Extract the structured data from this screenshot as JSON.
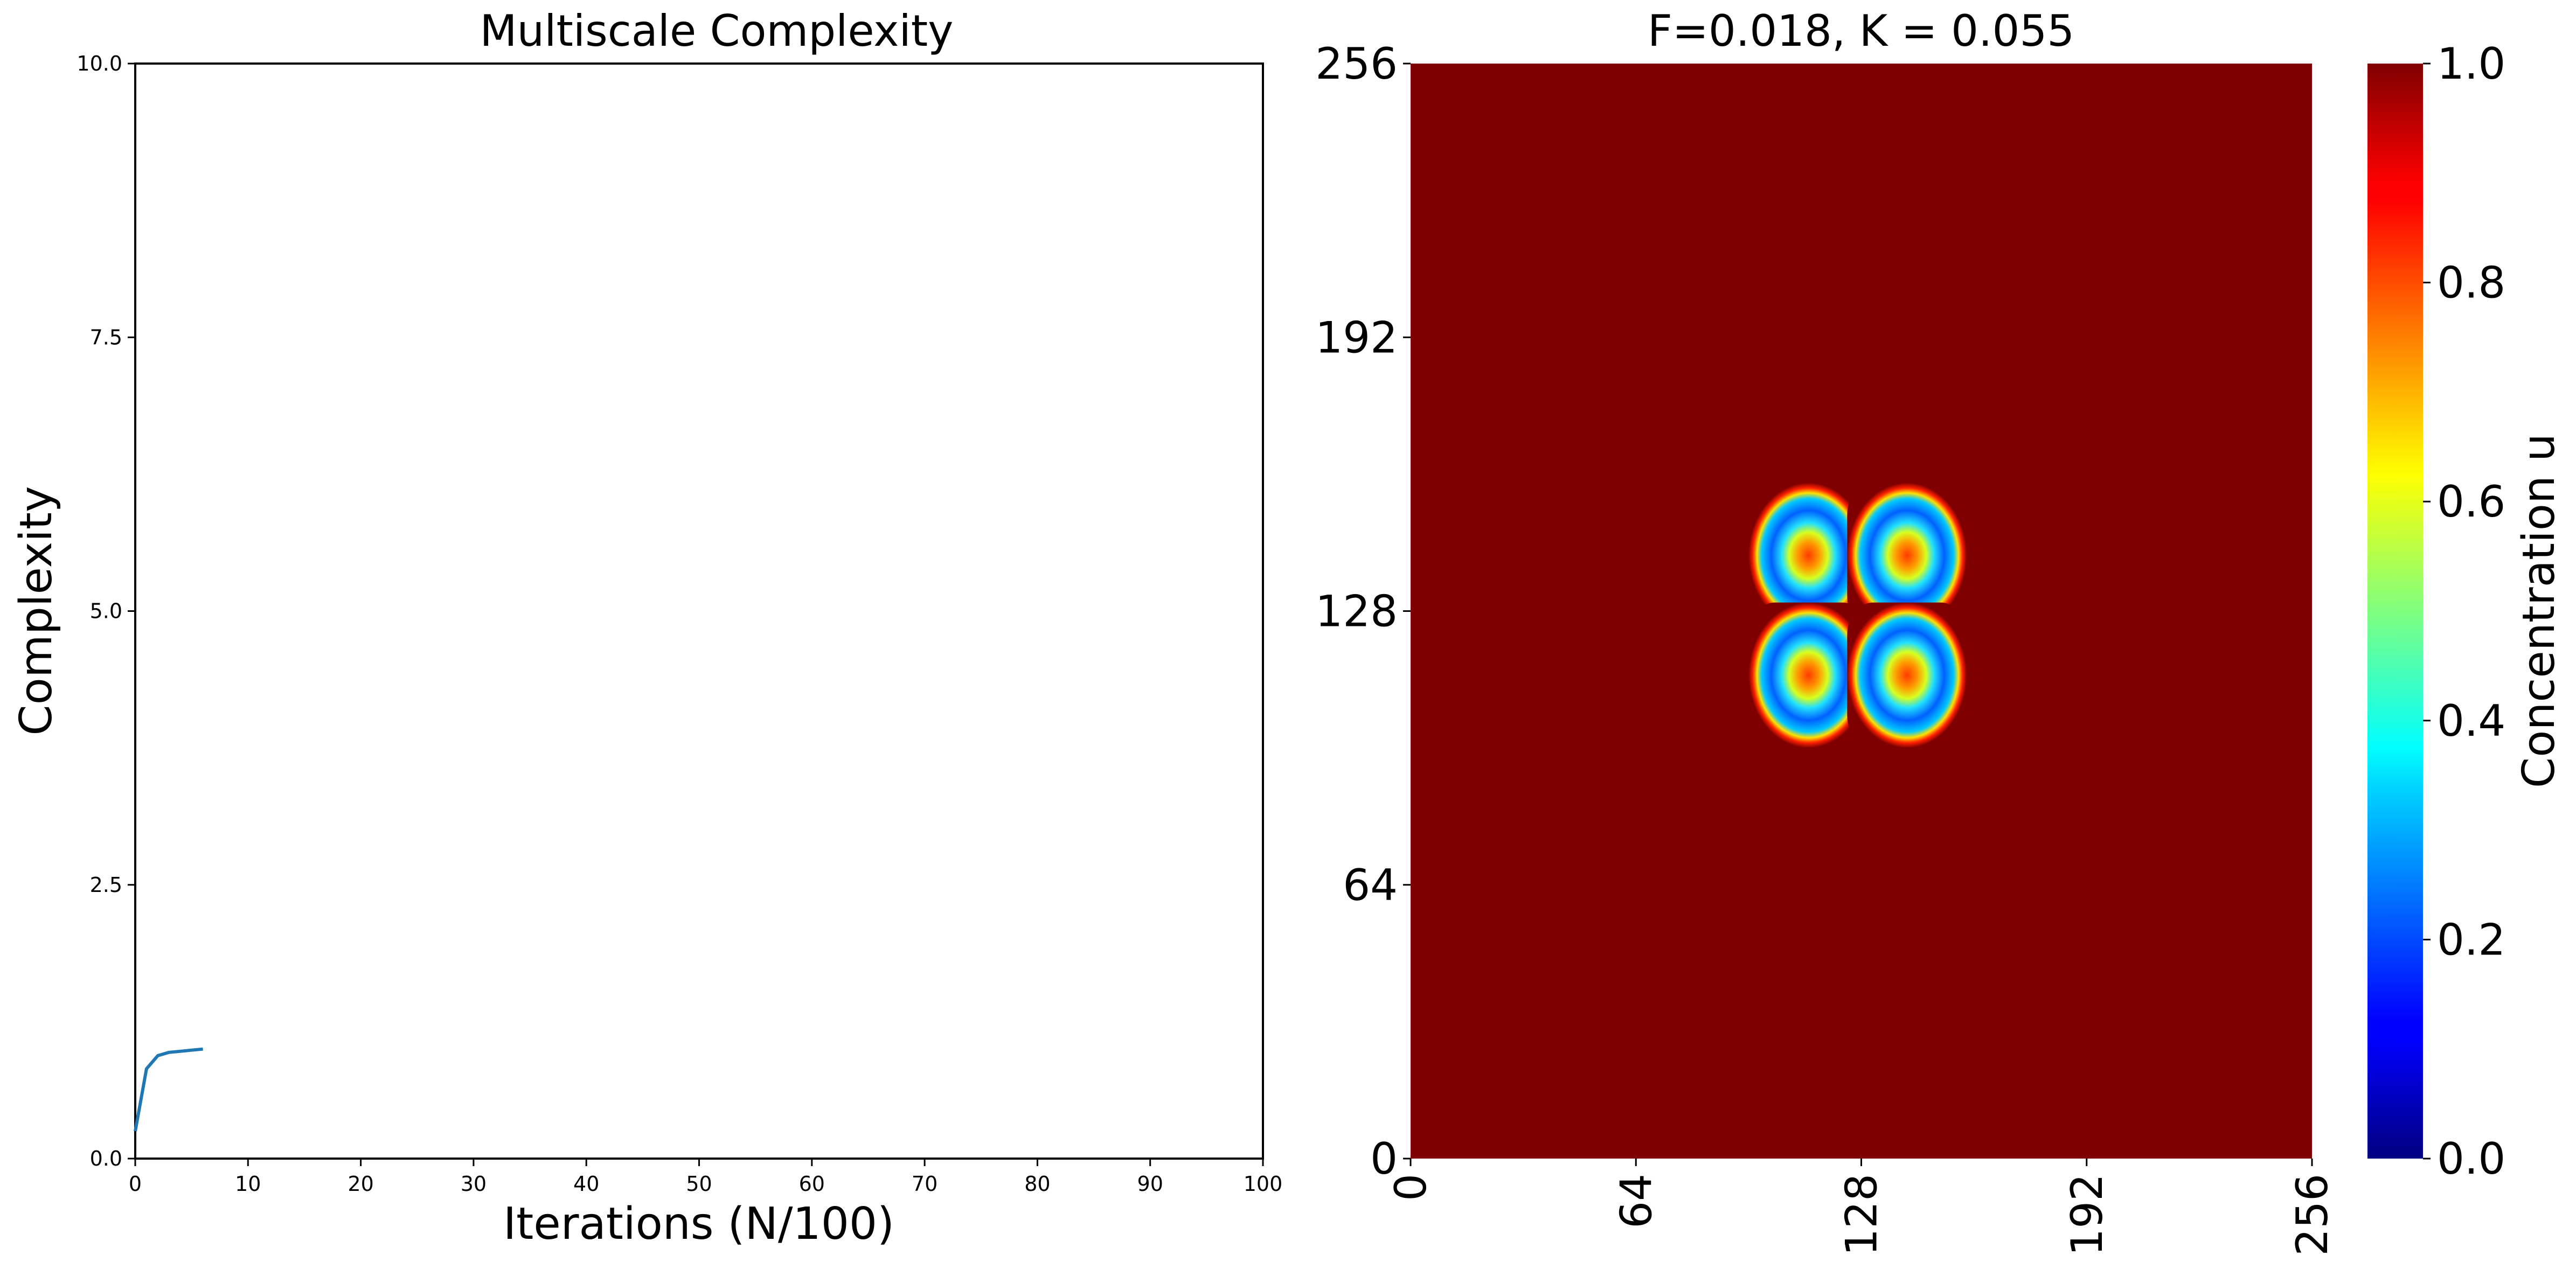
{
  "chart_data": [
    {
      "type": "line",
      "title": "Multiscale Complexity",
      "xlabel": "Iterations (N/100)",
      "ylabel": "Complexity",
      "xlim": [
        0,
        100
      ],
      "ylim": [
        0,
        10
      ],
      "xticks": [
        "0",
        "10",
        "20",
        "30",
        "40",
        "50",
        "60",
        "70",
        "80",
        "90",
        "100"
      ],
      "yticks": [
        "0.0",
        "2.5",
        "5.0",
        "7.5",
        "10.0"
      ],
      "grid": false,
      "series": [
        {
          "color": "#1f77b4",
          "x": [
            0,
            1,
            2,
            3,
            4,
            5,
            6
          ],
          "y": [
            0.25,
            0.82,
            0.94,
            0.97,
            0.98,
            0.99,
            1.0
          ]
        }
      ]
    },
    {
      "type": "heatmap",
      "title": "F=0.018, K = 0.055",
      "xlim": [
        0,
        256
      ],
      "ylim": [
        0,
        256
      ],
      "xticks": [
        "0",
        "64",
        "128",
        "192",
        "256"
      ],
      "yticks": [
        "0",
        "64",
        "128",
        "192",
        "256"
      ],
      "colormap": "jet",
      "background_value": 1.0,
      "spots": [
        {
          "cx": 113,
          "cy": 141,
          "half_size": 17
        },
        {
          "cx": 141,
          "cy": 141,
          "half_size": 17
        },
        {
          "cx": 113,
          "cy": 113,
          "half_size": 17
        },
        {
          "cx": 141,
          "cy": 113,
          "half_size": 17
        }
      ],
      "colorbar": {
        "label": "Concentration u",
        "range": [
          0.0,
          1.0
        ],
        "ticks": [
          "0.0",
          "0.2",
          "0.4",
          "0.6",
          "0.8",
          "1.0"
        ]
      }
    }
  ]
}
